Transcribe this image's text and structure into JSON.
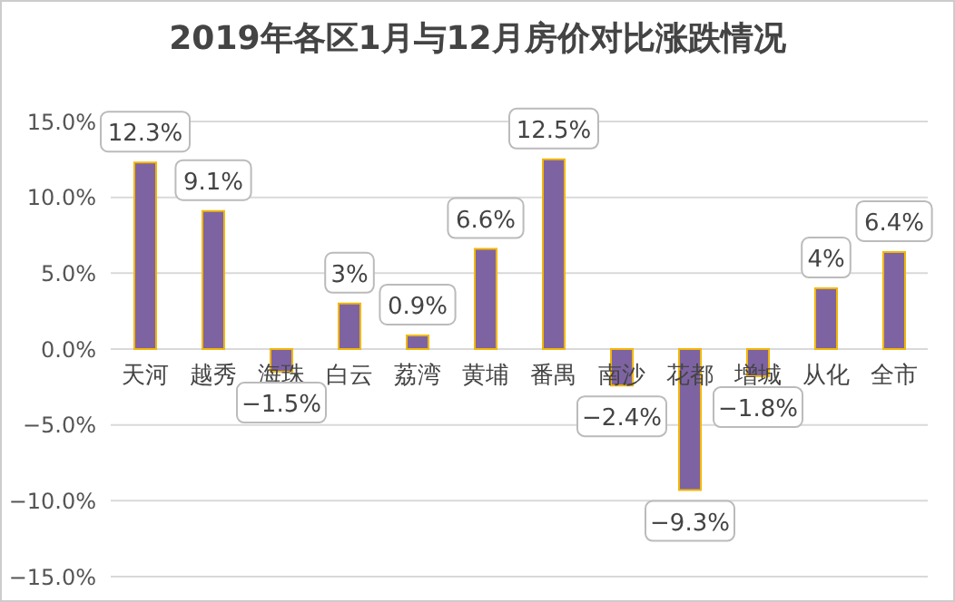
{
  "chart_data": {
    "type": "bar",
    "title": "2019年各区1月与12月房价对比涨跌情况",
    "categories": [
      "天河",
      "越秀",
      "海珠",
      "白云",
      "荔湾",
      "黄埔",
      "番禺",
      "南沙",
      "花都",
      "增城",
      "从化",
      "全市"
    ],
    "values": [
      12.3,
      9.1,
      -1.5,
      3,
      0.9,
      6.6,
      12.5,
      -2.4,
      -9.3,
      -1.8,
      4,
      6.4
    ],
    "value_labels": [
      "12.3%",
      "9.1%",
      "−1.5%",
      "3%",
      "0.9%",
      "6.6%",
      "12.5%",
      "−2.4%",
      "−9.3%",
      "−1.8%",
      "4%",
      "6.4%"
    ],
    "color": "#7e63a3",
    "ylim": [
      -15,
      15
    ],
    "yticks": [
      {
        "value": -15,
        "label": "−15.0%"
      },
      {
        "value": -10,
        "label": "−10.0%"
      },
      {
        "value": -5,
        "label": "−5.0%"
      },
      {
        "value": 0,
        "label": "0.0%"
      },
      {
        "value": 5,
        "label": "5.0%"
      },
      {
        "value": 10,
        "label": "10.0%"
      },
      {
        "value": 15,
        "label": "15.0%"
      }
    ],
    "grid": "y"
  }
}
